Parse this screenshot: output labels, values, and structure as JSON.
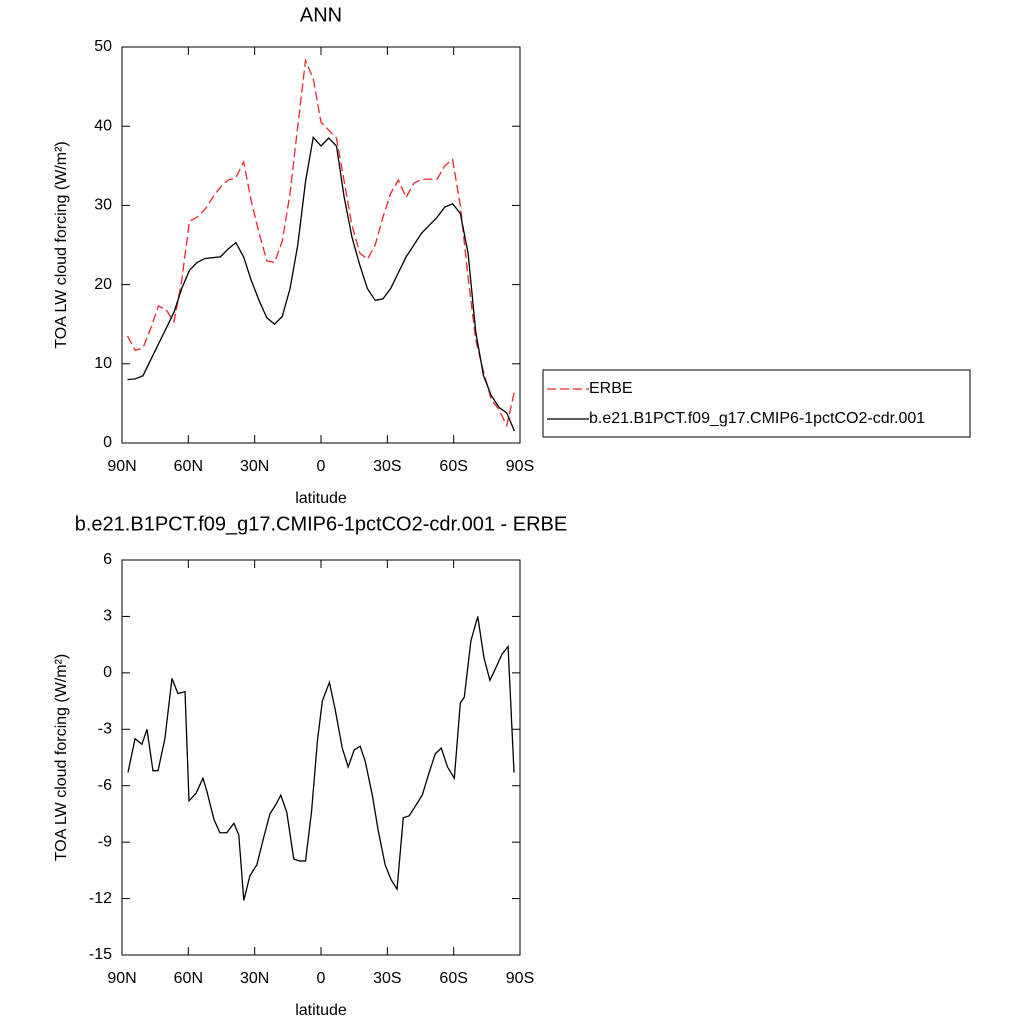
{
  "chart_data": [
    {
      "type": "line",
      "title": "ANN",
      "xlabel": "latitude",
      "ylabel": "TOA LW cloud forcing (W/m²)",
      "x": [
        87.5,
        84,
        80.5,
        77,
        73.5,
        70,
        66.5,
        63,
        59.5,
        56,
        52.5,
        49,
        45.5,
        42,
        38.5,
        35,
        31.5,
        28,
        24.5,
        21,
        17.5,
        14,
        10.5,
        7,
        3.5,
        0,
        -3.5,
        -7,
        -10.5,
        -14,
        -17.5,
        -21,
        -24.5,
        -28,
        -31.5,
        -35,
        -38.5,
        -42,
        -45.5,
        -49,
        -52.5,
        -56,
        -59.5,
        -63,
        -66.5,
        -70,
        -73.5,
        -77,
        -80.5,
        -84,
        -87.5
      ],
      "series": [
        {
          "name": "ERBE",
          "color": "#e8262a",
          "dashed": true,
          "values": [
            13.5,
            11.7,
            12.0,
            14.5,
            17.3,
            16.8,
            15.3,
            20.5,
            28,
            28.5,
            29.5,
            31,
            32.3,
            33.2,
            33.5,
            35.5,
            30.5,
            26.5,
            23,
            22.8,
            25.5,
            31.5,
            40,
            48.3,
            46,
            40.5,
            39.5,
            38.5,
            33,
            27.5,
            24,
            23.2,
            25,
            28.5,
            31.5,
            33.2,
            31,
            32.8,
            33.3,
            33.3,
            33.3,
            35,
            35.8,
            30,
            21,
            13,
            9,
            5.5,
            4.2,
            2.2,
            6.5
          ]
        },
        {
          "name": "b.e21.B1PCT.f09_g17.CMIP6-1pctCO2-cdr.001",
          "color": "#000000",
          "dashed": false,
          "values": [
            8.0,
            8.1,
            8.5,
            10.5,
            12.5,
            14.5,
            16.5,
            19.5,
            21.8,
            22.8,
            23.3,
            23.4,
            23.5,
            24.5,
            25.3,
            23.5,
            20.5,
            18,
            15.8,
            15,
            16,
            19.5,
            25,
            33,
            38.6,
            37.5,
            38.5,
            37.5,
            31,
            26,
            22.5,
            19.5,
            18,
            18.2,
            19.5,
            21.5,
            23.5,
            25,
            26.5,
            27.5,
            28.5,
            29.8,
            30.2,
            29,
            24,
            14,
            8.5,
            6,
            4.5,
            3.8,
            1.5
          ]
        }
      ],
      "xlim": [
        90,
        -90
      ],
      "xticks": [
        {
          "value": 90,
          "label": "90N"
        },
        {
          "value": 60,
          "label": "60N"
        },
        {
          "value": 30,
          "label": "30N"
        },
        0,
        {
          "value": -30,
          "label": "30S"
        },
        {
          "value": -60,
          "label": "60S"
        },
        {
          "value": -90,
          "label": "90S"
        }
      ],
      "ylim": [
        0,
        50
      ],
      "yticks": [
        0,
        10,
        20,
        30,
        40,
        50
      ],
      "legend": "outside-right"
    },
    {
      "type": "line",
      "title": "b.e21.B1PCT.f09_g17.CMIP6-1pctCO2-cdr.001 - ERBE",
      "xlabel": "latitude",
      "ylabel": "TOA LW cloud forcing (W/m²)",
      "x": [
        87.3,
        84.1,
        81.0,
        78.7,
        76.0,
        73.7,
        70.6,
        67.4,
        64.7,
        61.5,
        59.7,
        56.5,
        53.4,
        51.6,
        48.4,
        45.7,
        42.6,
        39.4,
        37.2,
        34.9,
        32.2,
        29.0,
        25.8,
        23.1,
        20.4,
        18.2,
        15.5,
        12.3,
        9.7,
        7.0,
        4.3,
        1.6,
        -0.6,
        -3.8,
        -6.5,
        -9.6,
        -12.3,
        -15.0,
        -17.7,
        -20.0,
        -23.2,
        -25.9,
        -29.0,
        -31.7,
        -34.4,
        -37.2,
        -39.9,
        -42.6,
        -45.8,
        -48.9,
        -51.7,
        -54.4,
        -57.2,
        -60.3,
        -63.0,
        -64.8,
        -67.8,
        -70.9,
        -73.7,
        -76.4,
        -79.2,
        -81.9,
        -84.6,
        -87.3
      ],
      "values": [
        -5.3,
        -3.5,
        -3.8,
        -3,
        -5.2,
        -5.2,
        -3.5,
        -0.3,
        -1.1,
        -1,
        -6.8,
        -6.4,
        -5.6,
        -6.3,
        -7.8,
        -8.5,
        -8.5,
        -8,
        -8.6,
        -12.1,
        -10.8,
        -10.2,
        -8.7,
        -7.5,
        -7,
        -6.5,
        -7.4,
        -9.9,
        -10,
        -10,
        -7.4,
        -3.6,
        -1.5,
        -0.5,
        -2,
        -4,
        -5,
        -4.1,
        -3.9,
        -4.7,
        -6.5,
        -8.4,
        -10.2,
        -11,
        -11.5,
        -7.7,
        -7.6,
        -7.1,
        -6.5,
        -5.3,
        -4.3,
        -4,
        -5,
        -5.6,
        -1.6,
        -1.3,
        1.7,
        3.0,
        0.8,
        -0.4,
        0.3,
        1.0,
        1.4,
        -5.3
      ],
      "color": "#000000",
      "xlim": [
        90,
        -90
      ],
      "xticks": [
        {
          "value": 90,
          "label": "90N"
        },
        {
          "value": 60,
          "label": "60N"
        },
        {
          "value": 30,
          "label": "30N"
        },
        0,
        {
          "value": -30,
          "label": "30S"
        },
        {
          "value": -60,
          "label": "60S"
        },
        {
          "value": -90,
          "label": "90S"
        }
      ],
      "ylim": [
        -15,
        6
      ],
      "yticks": [
        -15,
        -12,
        -9,
        -6,
        -3,
        0,
        3,
        6
      ]
    }
  ]
}
